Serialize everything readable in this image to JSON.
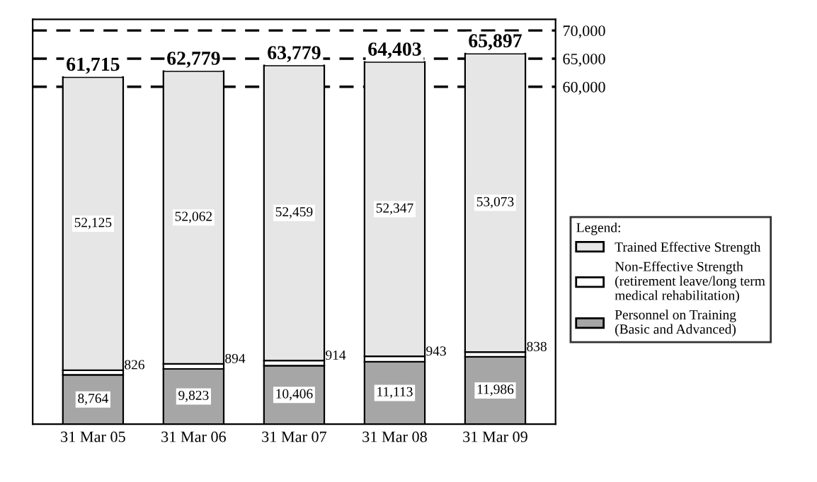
{
  "chart_data": {
    "type": "bar",
    "stacked": true,
    "categories": [
      "31 Mar 05",
      "31 Mar 06",
      "31 Mar 07",
      "31 Mar 08",
      "31 Mar 09"
    ],
    "series": [
      {
        "name": "Personnel on Training\n(Basic and Advanced)",
        "color": "#a6a6a6",
        "values": [
          8764,
          9823,
          10406,
          11113,
          11986
        ],
        "value_labels": [
          "8,764",
          "9,823",
          "10,406",
          "11,113",
          "11,986"
        ]
      },
      {
        "name": "Non-Effective Strength\n(retirement leave/long term\nmedical rehabilitation)",
        "color": "#ffffff",
        "values": [
          826,
          894,
          914,
          943,
          838
        ],
        "value_labels": [
          "826",
          "894",
          "914",
          "943",
          "838"
        ]
      },
      {
        "name": "Trained Effective Strength",
        "color": "#e6e6e6",
        "values": [
          52125,
          52062,
          52459,
          52347,
          53073
        ],
        "value_labels": [
          "52,125",
          "52,062",
          "52,459",
          "52,347",
          "53,073"
        ]
      }
    ],
    "totals": [
      "61,715",
      "62,779",
      "63,779",
      "64,403",
      "65,897"
    ],
    "ylim": [
      0,
      72000
    ],
    "yticks": [
      {
        "value": 60000,
        "label": "60,000"
      },
      {
        "value": 65000,
        "label": "65,000"
      },
      {
        "value": 70000,
        "label": "70,000"
      }
    ],
    "grid": "y",
    "line_style": "dashed",
    "legend": "right",
    "legend_title": "Legend:"
  }
}
